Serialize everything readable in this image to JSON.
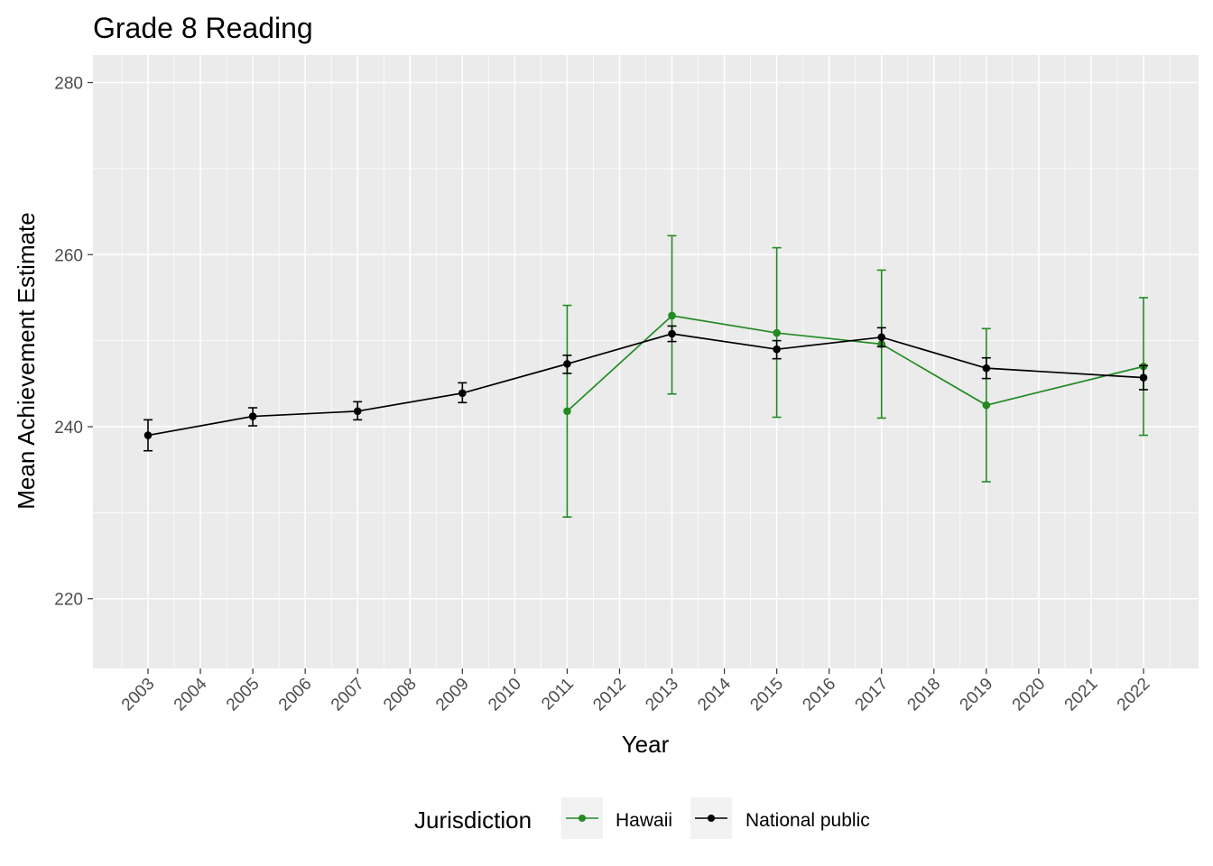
{
  "chart_data": {
    "type": "line",
    "title": "Grade 8 Reading",
    "xlabel": "Year",
    "ylabel": "Mean Achievement Estimate",
    "x_ticks": [
      "2003",
      "2004",
      "2005",
      "2006",
      "2007",
      "2008",
      "2009",
      "2010",
      "2011",
      "2012",
      "2013",
      "2014",
      "2015",
      "2016",
      "2017",
      "2018",
      "2019",
      "2020",
      "2021",
      "2022"
    ],
    "y_ticks": [
      220,
      240,
      260,
      280
    ],
    "ylim": [
      211.9,
      283.2
    ],
    "grid": true,
    "legend": {
      "title": "Jurisdiction",
      "placement": "bottom"
    },
    "series": [
      {
        "name": "Hawaii",
        "color": "#228B22",
        "points": [
          {
            "x": 2011,
            "y": 241.8,
            "lo": 229.5,
            "hi": 254.1
          },
          {
            "x": 2013,
            "y": 252.9,
            "lo": 243.8,
            "hi": 262.2
          },
          {
            "x": 2015,
            "y": 250.9,
            "lo": 241.1,
            "hi": 260.8
          },
          {
            "x": 2017,
            "y": 249.6,
            "lo": 241.0,
            "hi": 258.2
          },
          {
            "x": 2019,
            "y": 242.5,
            "lo": 233.6,
            "hi": 251.4
          },
          {
            "x": 2022,
            "y": 247.0,
            "lo": 239.0,
            "hi": 255.0
          }
        ]
      },
      {
        "name": "National public",
        "color": "#000000",
        "points": [
          {
            "x": 2003,
            "y": 239.0,
            "lo": 237.2,
            "hi": 240.8
          },
          {
            "x": 2005,
            "y": 241.2,
            "lo": 240.1,
            "hi": 242.2
          },
          {
            "x": 2007,
            "y": 241.8,
            "lo": 240.8,
            "hi": 242.9
          },
          {
            "x": 2009,
            "y": 243.9,
            "lo": 242.8,
            "hi": 245.1
          },
          {
            "x": 2011,
            "y": 247.3,
            "lo": 246.2,
            "hi": 248.3
          },
          {
            "x": 2013,
            "y": 250.8,
            "lo": 249.9,
            "hi": 251.7
          },
          {
            "x": 2015,
            "y": 249.0,
            "lo": 247.9,
            "hi": 250.0
          },
          {
            "x": 2017,
            "y": 250.4,
            "lo": 249.3,
            "hi": 251.5
          },
          {
            "x": 2019,
            "y": 246.8,
            "lo": 245.6,
            "hi": 248.0
          },
          {
            "x": 2022,
            "y": 245.7,
            "lo": 244.3,
            "hi": 247.1
          }
        ]
      }
    ]
  }
}
